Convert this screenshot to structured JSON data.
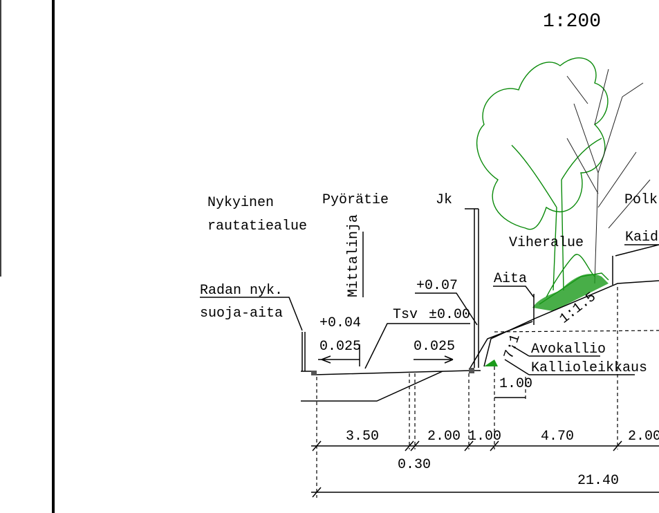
{
  "scale": "1:200",
  "labels": [
    "Nykyinen",
    "rautatiealue",
    "Pyörätie",
    "Jk",
    "Polk",
    "Kaid",
    "Viheralue",
    "Mittalinja",
    "Radan nyk.",
    "suoja-aita",
    "+0.07",
    "Aita",
    "Tsv",
    "±0.00",
    "+0.04",
    "0.025",
    "0.025",
    "1:1.5",
    "7:1",
    "Avokallio",
    "Kallioleikkaus",
    "1.00"
  ],
  "dimensions": [
    "3.50",
    "2.00",
    "1.00",
    "4.70",
    "2.00",
    "0.30",
    "21.40"
  ]
}
